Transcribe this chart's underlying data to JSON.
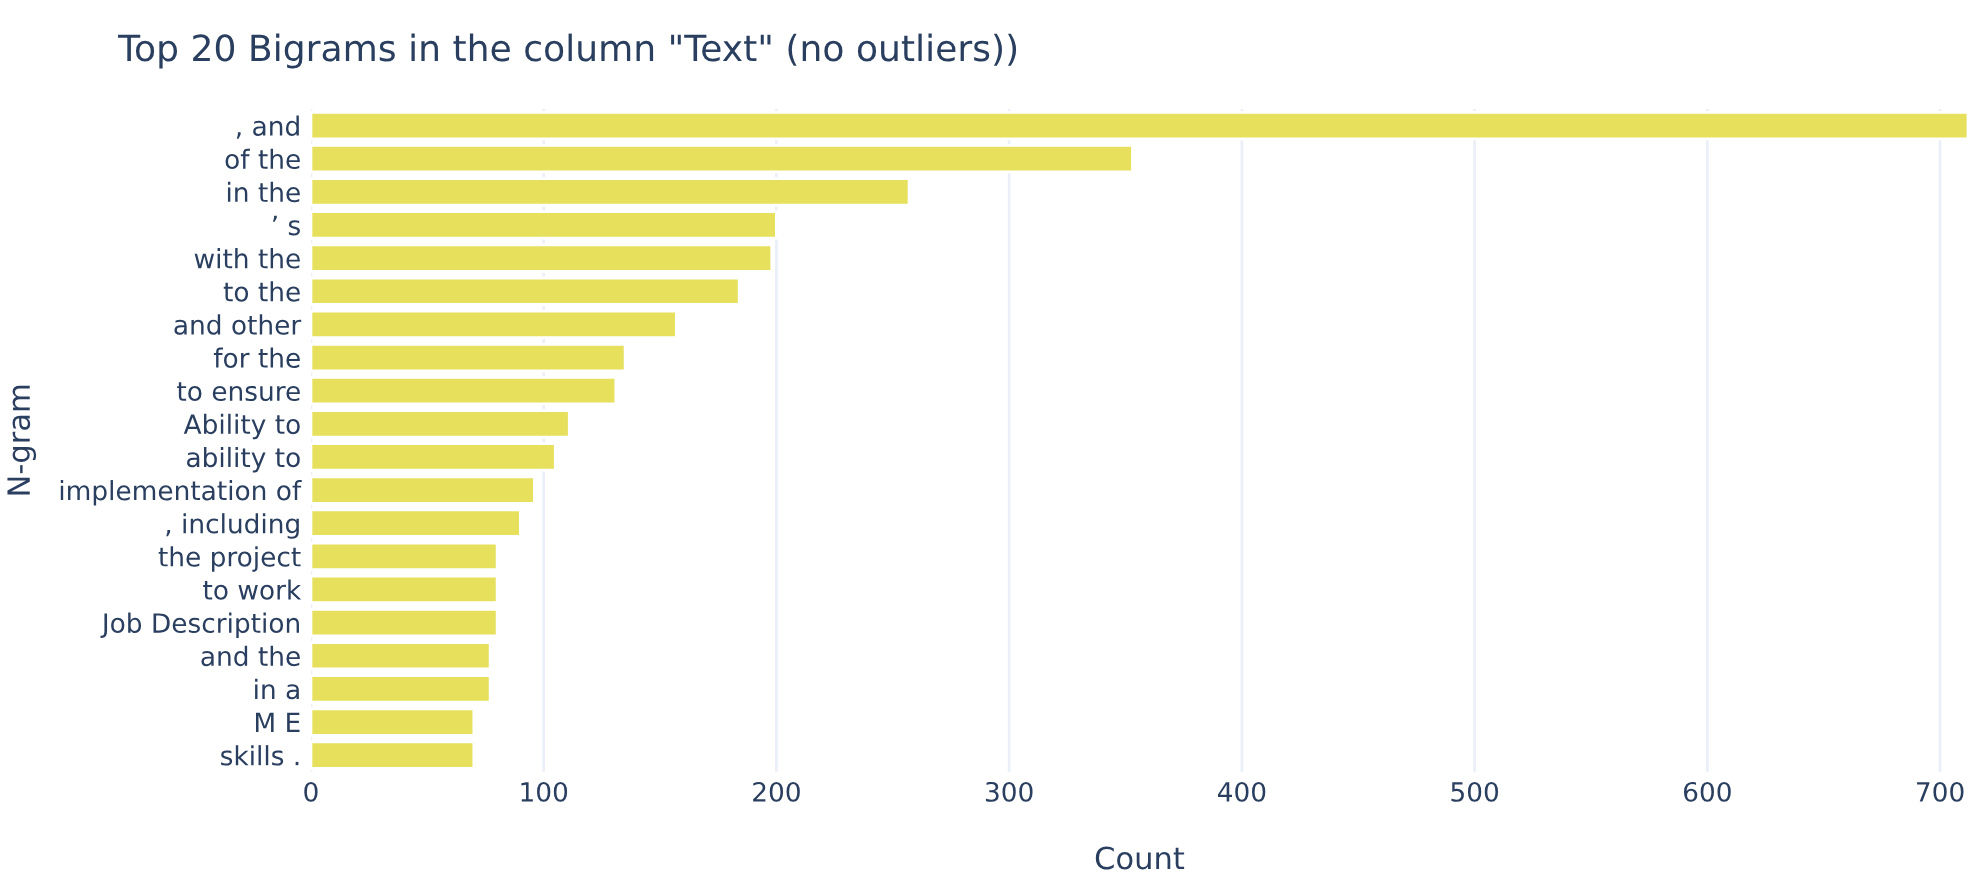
{
  "chart_data": {
    "type": "bar",
    "orientation": "horizontal",
    "title": "Top 20 Bigrams in the column \"Text\" (no outliers))",
    "xlabel": "Count",
    "ylabel": "N-gram",
    "categories": [
      ", and",
      "of the",
      "in the",
      "’ s",
      "with the",
      "to the",
      "and other",
      "for the",
      "to ensure",
      "Ability to",
      "ability to",
      "implementation of",
      ", including",
      "the project",
      "to work",
      "Job Description",
      "and the",
      "in a",
      "M E",
      "skills ."
    ],
    "values": [
      712,
      353,
      257,
      200,
      198,
      184,
      157,
      135,
      131,
      111,
      105,
      96,
      90,
      80,
      80,
      80,
      77,
      77,
      70,
      70
    ],
    "color": "#e6e05c",
    "xlim": [
      0,
      712
    ],
    "xticks": [
      0,
      100,
      200,
      300,
      400,
      500,
      600,
      700
    ],
    "grid": "x"
  }
}
